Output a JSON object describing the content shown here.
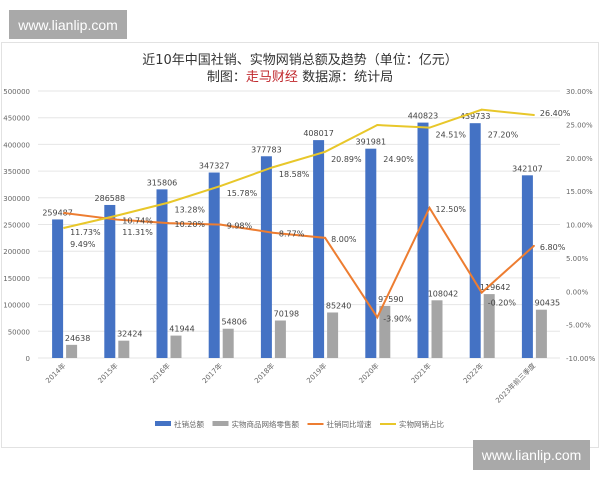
{
  "watermark": "www.lianlip.com",
  "chart_data": {
    "type": "bar+line",
    "title": "近10年中国社销、实物网销总额及趋势（单位：亿元）",
    "subtitle_prefix": "制图：",
    "subtitle_brand": "走马财经",
    "subtitle_suffix": " 数据源：统计局",
    "categories": [
      "2014年",
      "2015年",
      "2016年",
      "2017年",
      "2018年",
      "2019年",
      "2020年",
      "2021年",
      "2022年",
      "2023年前三季度"
    ],
    "y_left": {
      "range": [
        0,
        500000
      ],
      "ticks": [
        0,
        50000,
        100000,
        150000,
        200000,
        250000,
        300000,
        350000,
        400000,
        450000,
        500000
      ]
    },
    "y_right": {
      "range": [
        -10,
        30
      ],
      "ticks": [
        "-10.00%",
        "-5.00%",
        "0.00%",
        "5.00%",
        "10.00%",
        "15.00%",
        "20.00%",
        "25.00%",
        "30.00%"
      ]
    },
    "grid": true,
    "legend_position": "bottom",
    "series": [
      {
        "name": "社销总额",
        "type": "bar",
        "axis": "left",
        "color": "#4472c4",
        "values": [
          259487,
          286588,
          315806,
          347327,
          377783,
          408017,
          391981,
          440823,
          439733,
          342107
        ]
      },
      {
        "name": "实物商品网络零售额",
        "type": "bar",
        "axis": "left",
        "color": "#a5a5a5",
        "values": [
          24638,
          32424,
          41944,
          54806,
          70198,
          85240,
          97590,
          108042,
          119642,
          90435
        ]
      },
      {
        "name": "社销同比增速",
        "type": "line",
        "axis": "right",
        "color": "#ed7d31",
        "values": [
          11.73,
          10.74,
          10.2,
          9.98,
          8.77,
          8.0,
          -3.9,
          12.5,
          -0.2,
          6.8
        ],
        "labels": [
          "11.73%",
          "10.74%",
          "10.20%",
          "9.98%",
          "8.77%",
          "8.00%",
          "-3.90%",
          "12.50%",
          "-0.20%",
          "6.80%"
        ]
      },
      {
        "name": "实物网销占比",
        "type": "line",
        "axis": "right",
        "color": "#e8c72a",
        "values": [
          9.49,
          11.31,
          13.28,
          15.78,
          18.58,
          20.89,
          24.9,
          24.51,
          27.2,
          26.4
        ],
        "labels": [
          "9.49%",
          "11.31%",
          "13.28%",
          "15.78%",
          "18.58%",
          "20.89%",
          "24.90%",
          "24.51%",
          "27.20%",
          "26.40%"
        ]
      }
    ]
  }
}
